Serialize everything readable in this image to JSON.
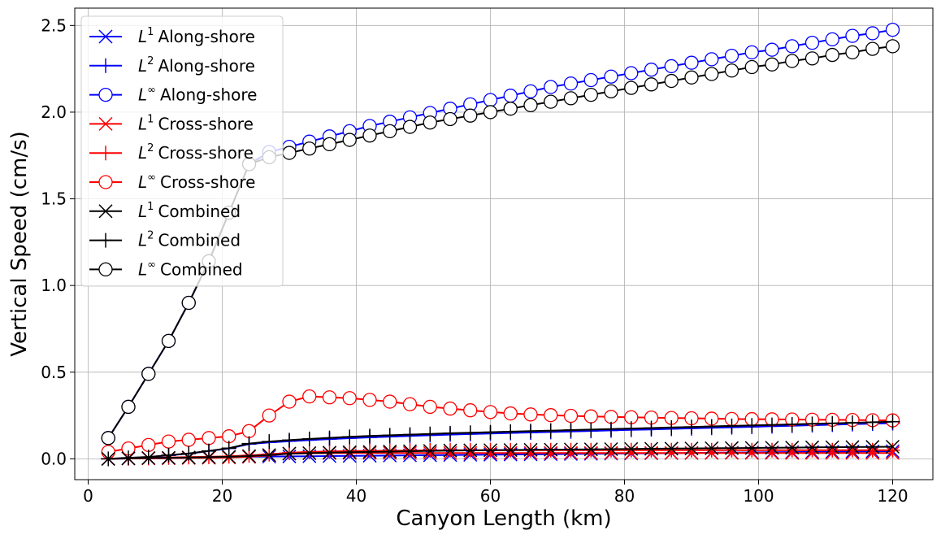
{
  "chart_data": {
    "type": "line",
    "title": "",
    "xlabel": "Canyon Length (km)",
    "ylabel": "Vertical Speed (cm/s)",
    "xlim": [
      -2,
      126
    ],
    "ylim": [
      -0.12,
      2.6
    ],
    "xticks": [
      0,
      20,
      40,
      60,
      80,
      100,
      120
    ],
    "yticks": [
      0.0,
      0.5,
      1.0,
      1.5,
      2.0,
      2.5
    ],
    "xtick_labels": [
      "0",
      "20",
      "40",
      "60",
      "80",
      "100",
      "120"
    ],
    "ytick_labels": [
      "0.0",
      "0.5",
      "1.0",
      "1.5",
      "2.0",
      "2.5"
    ],
    "grid": true,
    "legend_position": "top-left",
    "x": [
      3,
      6,
      9,
      12,
      15,
      18,
      21,
      24,
      27,
      30,
      33,
      36,
      39,
      42,
      45,
      48,
      51,
      54,
      57,
      60,
      63,
      66,
      69,
      72,
      75,
      78,
      81,
      84,
      87,
      90,
      93,
      96,
      99,
      102,
      105,
      108,
      111,
      114,
      117,
      120
    ],
    "series": [
      {
        "name": "Along-shore",
        "norm": "1",
        "color": "#0000ff",
        "marker": "x",
        "values": [
          0.0,
          0.002,
          0.003,
          0.004,
          0.006,
          0.008,
          0.01,
          0.012,
          0.013,
          0.014,
          0.015,
          0.016,
          0.017,
          0.018,
          0.019,
          0.02,
          0.021,
          0.022,
          0.023,
          0.024,
          0.025,
          0.026,
          0.027,
          0.028,
          0.029,
          0.03,
          0.031,
          0.032,
          0.033,
          0.034,
          0.035,
          0.036,
          0.037,
          0.038,
          0.039,
          0.04,
          0.041,
          0.042,
          0.043,
          0.044
        ]
      },
      {
        "name": "Along-shore",
        "norm": "2",
        "color": "#0000ff",
        "marker": "+",
        "values": [
          0.0,
          0.005,
          0.01,
          0.02,
          0.03,
          0.045,
          0.06,
          0.085,
          0.095,
          0.102,
          0.108,
          0.114,
          0.119,
          0.124,
          0.128,
          0.132,
          0.136,
          0.14,
          0.143,
          0.146,
          0.149,
          0.152,
          0.155,
          0.158,
          0.161,
          0.164,
          0.167,
          0.17,
          0.173,
          0.176,
          0.179,
          0.182,
          0.185,
          0.188,
          0.191,
          0.194,
          0.197,
          0.2,
          0.203,
          0.206
        ]
      },
      {
        "name": "Along-shore",
        "norm": "∞",
        "color": "#0000ff",
        "marker": "o",
        "values": [
          0.12,
          0.3,
          0.49,
          0.68,
          0.9,
          1.14,
          1.42,
          1.7,
          1.77,
          1.8,
          1.83,
          1.86,
          1.89,
          1.92,
          1.945,
          1.97,
          1.995,
          2.02,
          2.045,
          2.07,
          2.095,
          2.12,
          2.145,
          2.165,
          2.185,
          2.205,
          2.225,
          2.245,
          2.265,
          2.285,
          2.305,
          2.325,
          2.345,
          2.36,
          2.38,
          2.4,
          2.42,
          2.44,
          2.455,
          2.475
        ]
      },
      {
        "name": "Cross-shore",
        "norm": "1",
        "color": "#ff0000",
        "marker": "x",
        "values": [
          0.0,
          0.002,
          0.003,
          0.004,
          0.005,
          0.006,
          0.008,
          0.012,
          0.02,
          0.03,
          0.032,
          0.033,
          0.034,
          0.034,
          0.034,
          0.034,
          0.034,
          0.034,
          0.034,
          0.034,
          0.034,
          0.034,
          0.034,
          0.034,
          0.034,
          0.034,
          0.034,
          0.034,
          0.034,
          0.034,
          0.034,
          0.034,
          0.034,
          0.034,
          0.034,
          0.034,
          0.034,
          0.034,
          0.034,
          0.034
        ]
      },
      {
        "name": "Cross-shore",
        "norm": "2",
        "color": "#ff0000",
        "marker": "+",
        "values": [
          0.0,
          0.003,
          0.005,
          0.008,
          0.01,
          0.012,
          0.015,
          0.02,
          0.027,
          0.035,
          0.04,
          0.043,
          0.045,
          0.046,
          0.047,
          0.048,
          0.049,
          0.05,
          0.05,
          0.05,
          0.05,
          0.05,
          0.05,
          0.05,
          0.05,
          0.05,
          0.05,
          0.05,
          0.05,
          0.05,
          0.05,
          0.05,
          0.05,
          0.05,
          0.05,
          0.05,
          0.05,
          0.05,
          0.05,
          0.05
        ]
      },
      {
        "name": "Cross-shore",
        "norm": "∞",
        "color": "#ff0000",
        "marker": "o",
        "values": [
          0.04,
          0.06,
          0.08,
          0.1,
          0.11,
          0.12,
          0.13,
          0.16,
          0.25,
          0.33,
          0.36,
          0.355,
          0.35,
          0.34,
          0.33,
          0.315,
          0.3,
          0.29,
          0.28,
          0.27,
          0.262,
          0.256,
          0.252,
          0.248,
          0.245,
          0.242,
          0.24,
          0.238,
          0.236,
          0.234,
          0.232,
          0.23,
          0.229,
          0.228,
          0.227,
          0.226,
          0.225,
          0.224,
          0.223,
          0.222
        ]
      },
      {
        "name": "Combined",
        "norm": "1",
        "color": "#000000",
        "marker": "x",
        "values": [
          0.0,
          0.003,
          0.005,
          0.006,
          0.008,
          0.01,
          0.012,
          0.016,
          0.022,
          0.03,
          0.033,
          0.036,
          0.038,
          0.04,
          0.042,
          0.044,
          0.046,
          0.048,
          0.049,
          0.05,
          0.051,
          0.052,
          0.053,
          0.054,
          0.055,
          0.056,
          0.057,
          0.058,
          0.059,
          0.06,
          0.061,
          0.062,
          0.063,
          0.064,
          0.065,
          0.066,
          0.067,
          0.068,
          0.069,
          0.07
        ]
      },
      {
        "name": "Combined",
        "norm": "2",
        "color": "#000000",
        "marker": "+",
        "values": [
          0.0,
          0.006,
          0.011,
          0.021,
          0.031,
          0.046,
          0.062,
          0.088,
          0.1,
          0.108,
          0.115,
          0.121,
          0.127,
          0.132,
          0.136,
          0.14,
          0.144,
          0.148,
          0.151,
          0.154,
          0.157,
          0.16,
          0.163,
          0.166,
          0.169,
          0.172,
          0.175,
          0.178,
          0.181,
          0.184,
          0.187,
          0.19,
          0.193,
          0.196,
          0.199,
          0.202,
          0.205,
          0.208,
          0.211,
          0.214
        ]
      },
      {
        "name": "Combined",
        "norm": "∞",
        "color": "#000000",
        "marker": "o",
        "values": [
          0.12,
          0.3,
          0.49,
          0.68,
          0.9,
          1.14,
          1.42,
          1.7,
          1.74,
          1.765,
          1.79,
          1.815,
          1.84,
          1.865,
          1.89,
          1.915,
          1.94,
          1.96,
          1.98,
          2.0,
          2.02,
          2.04,
          2.06,
          2.08,
          2.1,
          2.12,
          2.14,
          2.16,
          2.18,
          2.2,
          2.22,
          2.24,
          2.26,
          2.275,
          2.295,
          2.31,
          2.33,
          2.345,
          2.365,
          2.38
        ]
      }
    ]
  }
}
